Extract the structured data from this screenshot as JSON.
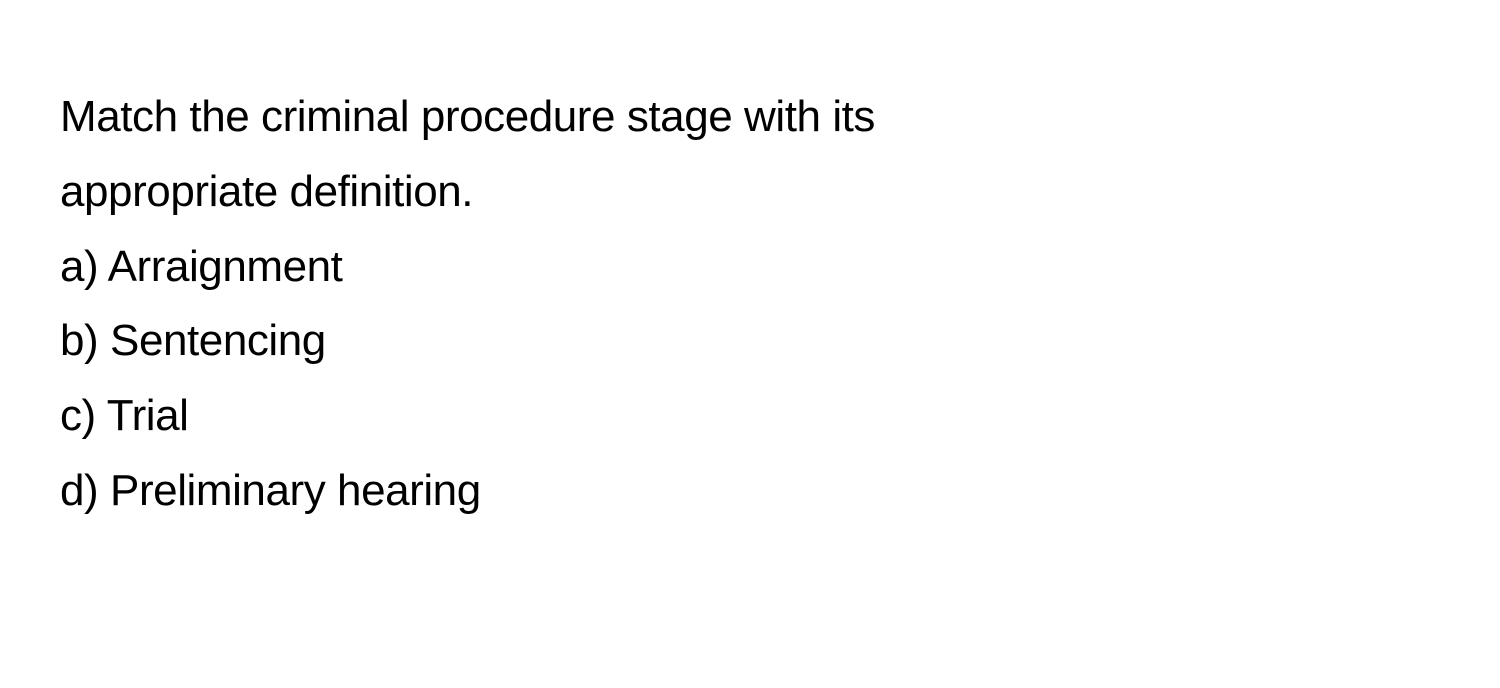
{
  "question": {
    "line1": "Match the criminal procedure stage with its",
    "line2": "appropriate definition."
  },
  "options": [
    {
      "label": "a)",
      "text": "Arraignment"
    },
    {
      "label": "b)",
      "text": "Sentencing"
    },
    {
      "label": "c)",
      "text": "Trial"
    },
    {
      "label": "d)",
      "text": "Preliminary hearing"
    }
  ]
}
